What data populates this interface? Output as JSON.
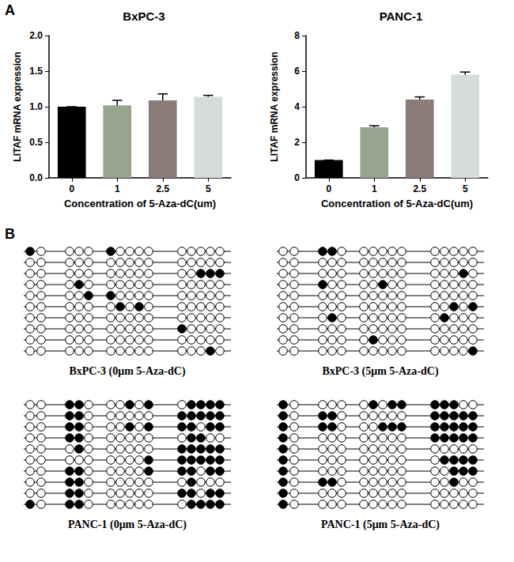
{
  "chart_data": [
    {
      "type": "bar",
      "title": "BxPC-3",
      "x_label": "Concentration of 5-Aza-dC(um)",
      "y_label": "LITAF mRNA expression",
      "categories": [
        "0",
        "1",
        "2.5",
        "5"
      ],
      "values": [
        1.0,
        1.02,
        1.09,
        1.14
      ],
      "errors": [
        0,
        0.07,
        0.09,
        0.02
      ],
      "colors": [
        "#000000",
        "#98a58e",
        "#8b7b79",
        "#d5dcda"
      ],
      "ylim": [
        0,
        2
      ],
      "yticks": [
        {
          "value": 0,
          "label": "0.0"
        },
        {
          "value": 0.5,
          "label": "0.5"
        },
        {
          "value": 1,
          "label": "1.0"
        },
        {
          "value": 1.5,
          "label": "1.5"
        },
        {
          "value": 2,
          "label": "2.0"
        }
      ],
      "grid": false
    },
    {
      "type": "bar",
      "title": "PANC-1",
      "x_label": "Concentration of 5-Aza-dC(um)",
      "y_label": "LITAF mRNA expression",
      "categories": [
        "0",
        "1",
        "2.5",
        "5"
      ],
      "values": [
        1.0,
        2.85,
        4.4,
        5.8
      ],
      "errors": [
        0,
        0.08,
        0.15,
        0.15
      ],
      "colors": [
        "#000000",
        "#98a58e",
        "#8b7b79",
        "#d5dcda"
      ],
      "ylim": [
        0,
        8
      ],
      "yticks": [
        0,
        2,
        4,
        6,
        8
      ],
      "grid": false
    }
  ],
  "panel_labels": [
    "A",
    "B"
  ],
  "methylation": [
    {
      "label": "BxPC-3 (0μm 5-Aza-dC)",
      "rows": [
        [
          1,
          0,
          0,
          0,
          0,
          1,
          0,
          0,
          0,
          0,
          0,
          0,
          0,
          0,
          0
        ],
        [
          0,
          0,
          0,
          0,
          0,
          0,
          0,
          0,
          0,
          0,
          0,
          0,
          0,
          0,
          0
        ],
        [
          0,
          0,
          0,
          0,
          0,
          0,
          0,
          0,
          0,
          0,
          0,
          0,
          1,
          1,
          1
        ],
        [
          0,
          0,
          0,
          1,
          0,
          0,
          0,
          0,
          0,
          0,
          0,
          0,
          0,
          0,
          0
        ],
        [
          0,
          0,
          0,
          0,
          1,
          1,
          0,
          0,
          0,
          0,
          0,
          0,
          0,
          0,
          0
        ],
        [
          0,
          0,
          0,
          0,
          0,
          0,
          1,
          0,
          1,
          0,
          0,
          0,
          0,
          0,
          0
        ],
        [
          0,
          0,
          0,
          0,
          0,
          0,
          0,
          0,
          0,
          0,
          0,
          0,
          0,
          0,
          0
        ],
        [
          0,
          0,
          0,
          0,
          0,
          0,
          0,
          0,
          0,
          0,
          1,
          0,
          0,
          0,
          0
        ],
        [
          0,
          0,
          0,
          0,
          0,
          0,
          0,
          0,
          0,
          0,
          0,
          0,
          0,
          0,
          0
        ],
        [
          0,
          0,
          0,
          0,
          0,
          0,
          0,
          0,
          0,
          0,
          0,
          0,
          0,
          1,
          0
        ]
      ]
    },
    {
      "label": "BxPC-3 (5μm 5-Aza-dC)",
      "rows": [
        [
          0,
          0,
          1,
          1,
          0,
          0,
          0,
          0,
          0,
          0,
          0,
          0,
          0,
          0,
          0
        ],
        [
          0,
          0,
          0,
          0,
          0,
          0,
          0,
          0,
          0,
          0,
          0,
          0,
          0,
          0,
          0
        ],
        [
          0,
          0,
          0,
          0,
          0,
          0,
          0,
          0,
          0,
          0,
          0,
          0,
          0,
          1,
          0
        ],
        [
          0,
          0,
          1,
          0,
          0,
          0,
          0,
          1,
          0,
          0,
          0,
          0,
          0,
          0,
          0
        ],
        [
          0,
          0,
          0,
          0,
          0,
          0,
          0,
          0,
          0,
          0,
          0,
          0,
          0,
          0,
          0
        ],
        [
          0,
          0,
          0,
          0,
          0,
          0,
          0,
          0,
          0,
          0,
          0,
          0,
          1,
          0,
          1
        ],
        [
          0,
          0,
          0,
          1,
          0,
          0,
          0,
          0,
          0,
          0,
          0,
          1,
          0,
          0,
          0
        ],
        [
          0,
          0,
          0,
          0,
          0,
          0,
          0,
          0,
          0,
          0,
          0,
          0,
          0,
          0,
          0
        ],
        [
          0,
          0,
          0,
          0,
          0,
          0,
          1,
          0,
          0,
          0,
          0,
          0,
          0,
          0,
          0
        ],
        [
          0,
          0,
          0,
          0,
          0,
          0,
          0,
          0,
          0,
          0,
          0,
          0,
          0,
          0,
          1
        ]
      ]
    },
    {
      "label": "PANC-1 (0μm 5-Aza-dC)",
      "rows": [
        [
          0,
          0,
          1,
          1,
          0,
          0,
          0,
          1,
          0,
          1,
          0,
          1,
          1,
          1,
          1
        ],
        [
          0,
          0,
          1,
          1,
          0,
          0,
          0,
          0,
          0,
          0,
          1,
          1,
          1,
          1,
          1
        ],
        [
          0,
          0,
          1,
          1,
          0,
          0,
          0,
          1,
          0,
          1,
          1,
          1,
          0,
          1,
          1
        ],
        [
          0,
          0,
          1,
          1,
          0,
          0,
          0,
          0,
          0,
          0,
          0,
          1,
          1,
          0,
          0
        ],
        [
          0,
          0,
          0,
          1,
          0,
          0,
          0,
          0,
          0,
          0,
          1,
          1,
          1,
          1,
          1
        ],
        [
          0,
          0,
          0,
          0,
          0,
          0,
          0,
          0,
          0,
          1,
          1,
          1,
          1,
          1,
          1
        ],
        [
          0,
          0,
          1,
          1,
          0,
          0,
          0,
          0,
          0,
          1,
          1,
          1,
          0,
          1,
          1
        ],
        [
          0,
          0,
          1,
          1,
          0,
          0,
          0,
          0,
          0,
          0,
          0,
          1,
          0,
          0,
          0
        ],
        [
          0,
          0,
          1,
          1,
          0,
          0,
          0,
          0,
          0,
          0,
          1,
          1,
          0,
          1,
          1
        ],
        [
          1,
          0,
          1,
          1,
          0,
          0,
          0,
          0,
          0,
          0,
          0,
          1,
          1,
          1,
          1
        ]
      ]
    },
    {
      "label": "PANC-1 (5μm 5-Aza-dC)",
      "rows": [
        [
          1,
          0,
          0,
          0,
          0,
          0,
          1,
          0,
          1,
          1,
          1,
          1,
          1,
          0,
          0
        ],
        [
          1,
          0,
          1,
          1,
          0,
          0,
          0,
          0,
          0,
          0,
          1,
          1,
          1,
          1,
          1
        ],
        [
          1,
          0,
          1,
          1,
          0,
          0,
          0,
          1,
          1,
          1,
          1,
          1,
          1,
          1,
          1
        ],
        [
          1,
          0,
          0,
          0,
          0,
          0,
          0,
          0,
          0,
          0,
          1,
          1,
          1,
          1,
          1
        ],
        [
          1,
          0,
          0,
          0,
          0,
          0,
          0,
          0,
          0,
          0,
          0,
          0,
          0,
          0,
          0
        ],
        [
          1,
          0,
          0,
          0,
          0,
          0,
          0,
          0,
          0,
          0,
          0,
          1,
          1,
          1,
          1
        ],
        [
          1,
          0,
          0,
          0,
          0,
          0,
          0,
          0,
          0,
          0,
          0,
          0,
          1,
          1,
          1
        ],
        [
          1,
          0,
          1,
          1,
          0,
          0,
          0,
          0,
          0,
          0,
          0,
          0,
          1,
          0,
          0
        ],
        [
          1,
          0,
          0,
          0,
          0,
          0,
          0,
          0,
          0,
          0,
          0,
          0,
          0,
          0,
          0
        ],
        [
          1,
          0,
          0,
          0,
          0,
          0,
          0,
          0,
          0,
          0,
          0,
          0,
          0,
          0,
          0
        ]
      ]
    }
  ]
}
